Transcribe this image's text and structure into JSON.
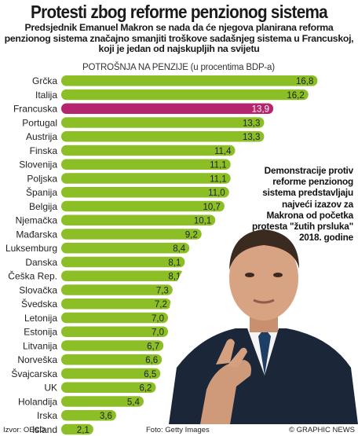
{
  "title": "Protesti zbog reforme penzionog sistema",
  "subtitle": "Predsjednik Emanuel Makron se nada da će njegova planirana reforma penzionog sistema značajno smanjiti troškove sadašnjeg sistema u Francuskoj, koji je jedan od najskupljih na svijetu",
  "note": "Demonstracije protiv reforme penzionog sistema predstavljaju najveći izazov za Makrona od početka protesta \"žutih prsluka\" 2018. godine",
  "footer": {
    "source": "Izvor: OECD",
    "photo": "Foto: Getty Images",
    "agency": "© GRAPHIC NEWS"
  },
  "colors": {
    "bar": "#8cbf26",
    "highlight": "#b5246e"
  },
  "chart_data": {
    "type": "bar",
    "orientation": "horizontal",
    "title": "POTROŠNJA NA PENZIJE (u procentima BDP-a)",
    "categories": [
      "Grčka",
      "Italija",
      "Francuska",
      "Portugal",
      "Austrija",
      "Finska",
      "Slovenija",
      "Poljska",
      "Španija",
      "Belgija",
      "Njemačka",
      "Mađarska",
      "Luksemburg",
      "Danska",
      "Češka Rep.",
      "Slovačka",
      "Švedska",
      "Letonija",
      "Estonija",
      "Litvanija",
      "Norveška",
      "Švajcarska",
      "UK",
      "Holandija",
      "Irska",
      "Island"
    ],
    "values": [
      16.8,
      16.2,
      13.9,
      13.3,
      13.3,
      11.4,
      11.1,
      11.1,
      11.0,
      10.7,
      10.1,
      9.2,
      8.4,
      8.1,
      8.1,
      7.3,
      7.2,
      7.0,
      7.0,
      6.7,
      6.6,
      6.5,
      6.2,
      5.4,
      3.6,
      2.1
    ],
    "value_labels": [
      "16,8",
      "16,2",
      "13,9",
      "13,3",
      "13,3",
      "11,4",
      "11,1",
      "11,1",
      "11,0",
      "10,7",
      "10,1",
      "9,2",
      "8,4",
      "8,1",
      "8,1",
      "7,3",
      "7,2",
      "7,0",
      "7,0",
      "6,7",
      "6,6",
      "6,5",
      "6,2",
      "5,4",
      "3,6",
      "2,1"
    ],
    "highlight": "Francuska",
    "xlim": [
      0,
      17.5
    ]
  }
}
